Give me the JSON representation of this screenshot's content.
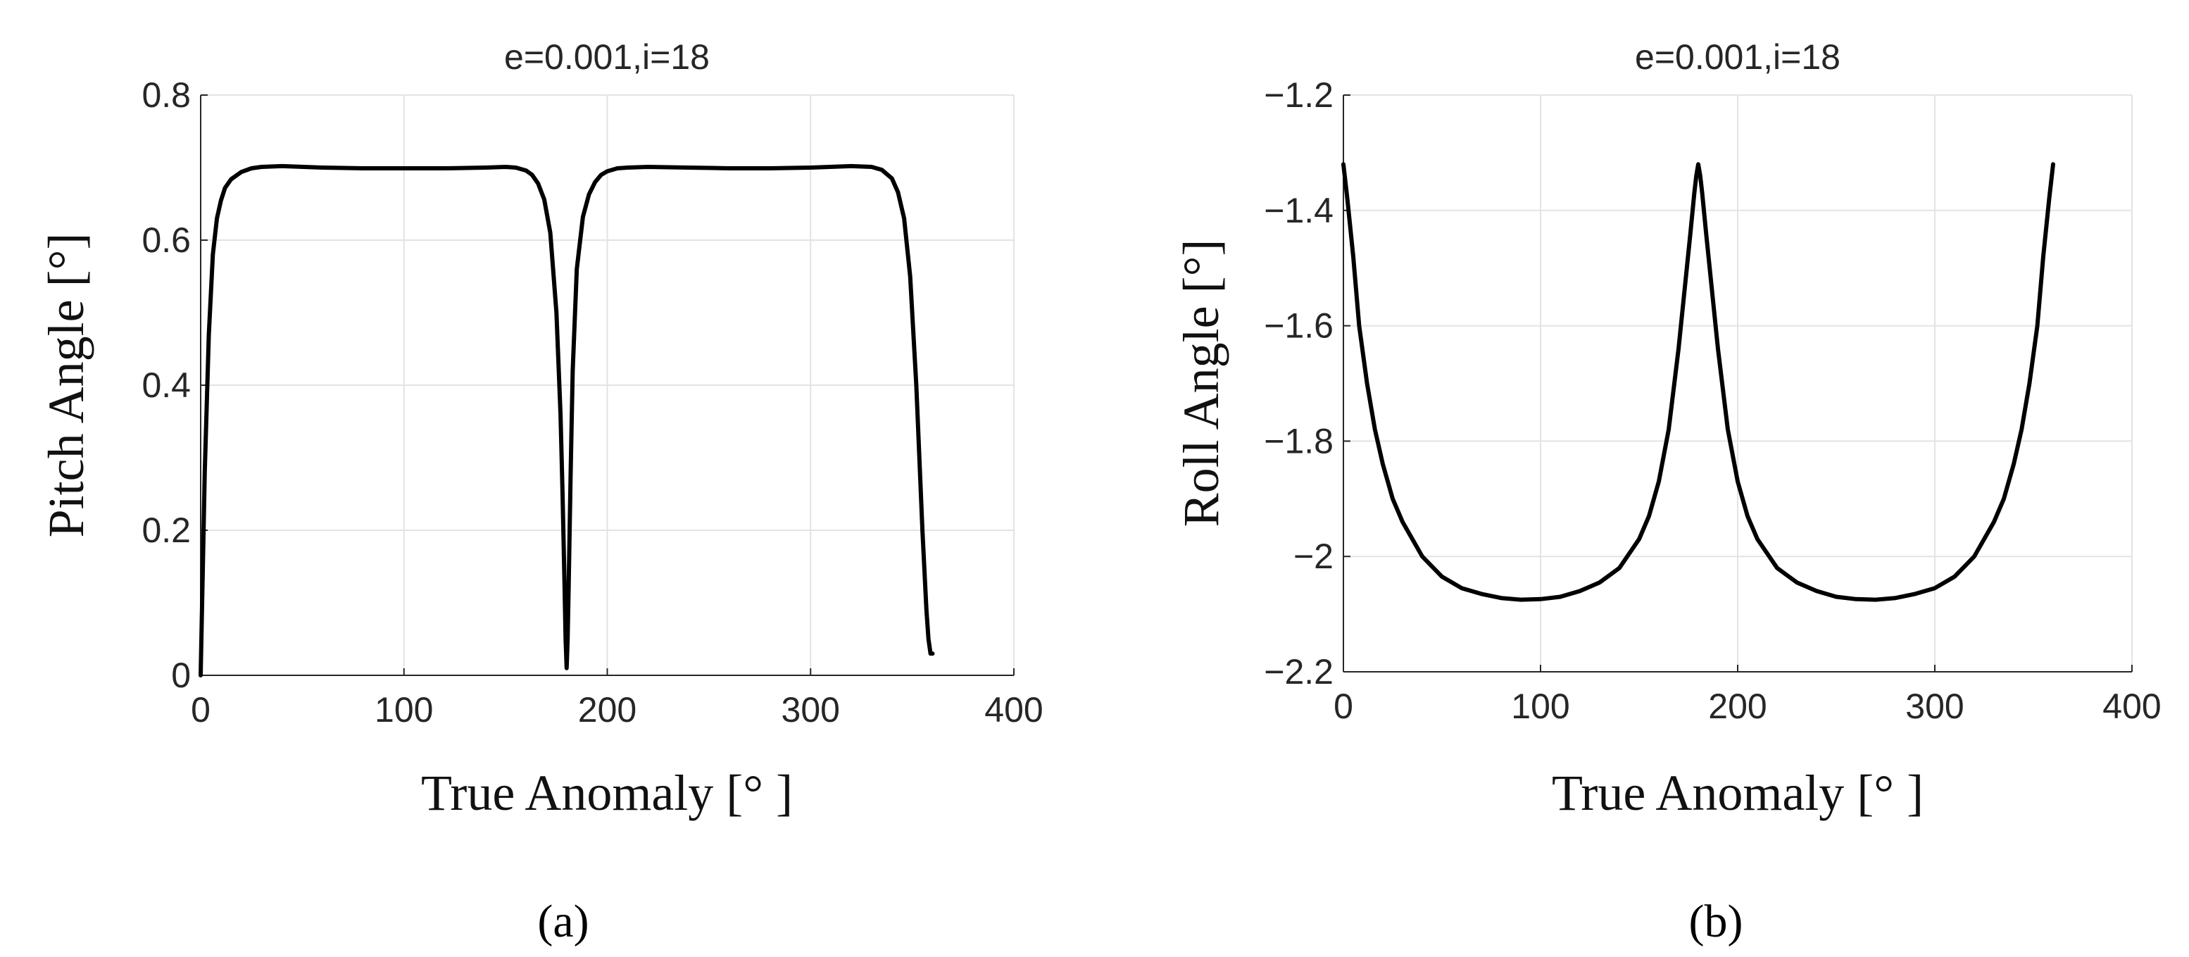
{
  "chart_data": [
    {
      "panel_label": "(a)",
      "type": "line",
      "title": "e=0.001,i=18",
      "xlabel": "True Anomaly [° ]",
      "ylabel": "Pitch Angle [°]",
      "xlim": [
        0,
        400
      ],
      "ylim": [
        0,
        0.8
      ],
      "xticks": [
        0,
        100,
        200,
        300,
        400
      ],
      "xtick_labels": [
        "0",
        "100",
        "200",
        "300",
        "400"
      ],
      "yticks": [
        0,
        0.2,
        0.4,
        0.6,
        0.8
      ],
      "ytick_labels": [
        "0",
        "0.2",
        "0.4",
        "0.6",
        "0.8"
      ],
      "grid": true,
      "line_color": "#000000",
      "series": [
        {
          "x": [
            0,
            1,
            2,
            4,
            6,
            8,
            10,
            12,
            15,
            20,
            25,
            30,
            40,
            60,
            80,
            100,
            120,
            140,
            150,
            155,
            160,
            163,
            166,
            169,
            172,
            175,
            177,
            178,
            179,
            179.5,
            180,
            180.5,
            181,
            182,
            183,
            185,
            188,
            191,
            194,
            197,
            200,
            205,
            210,
            220,
            240,
            260,
            280,
            300,
            320,
            330,
            335,
            340,
            343,
            346,
            349,
            352,
            355,
            357,
            358,
            359,
            360
          ],
          "y": [
            0,
            0.14,
            0.28,
            0.47,
            0.58,
            0.63,
            0.655,
            0.672,
            0.684,
            0.694,
            0.699,
            0.701,
            0.702,
            0.7,
            0.699,
            0.699,
            0.699,
            0.7,
            0.701,
            0.7,
            0.696,
            0.69,
            0.678,
            0.656,
            0.61,
            0.5,
            0.36,
            0.25,
            0.12,
            0.05,
            0.01,
            0.05,
            0.12,
            0.28,
            0.42,
            0.56,
            0.632,
            0.663,
            0.68,
            0.69,
            0.695,
            0.699,
            0.7,
            0.701,
            0.7,
            0.699,
            0.699,
            0.7,
            0.702,
            0.701,
            0.697,
            0.685,
            0.666,
            0.63,
            0.55,
            0.4,
            0.2,
            0.09,
            0.05,
            0.03,
            0.03
          ]
        }
      ]
    },
    {
      "panel_label": "(b)",
      "type": "line",
      "title": "e=0.001,i=18",
      "xlabel": "True Anomaly [° ]",
      "ylabel": "Roll Angle [°]",
      "xlim": [
        0,
        400
      ],
      "ylim": [
        -2.2,
        -1.2
      ],
      "xticks": [
        0,
        100,
        200,
        300,
        400
      ],
      "xtick_labels": [
        "0",
        "100",
        "200",
        "300",
        "400"
      ],
      "yticks": [
        -2.2,
        -2,
        -1.8,
        -1.6,
        -1.4,
        -1.2
      ],
      "ytick_labels": [
        "−2.2",
        "−2",
        "−1.8",
        "−1.6",
        "−1.4",
        "−1.2"
      ],
      "grid": true,
      "line_color": "#000000",
      "series": [
        {
          "x": [
            0,
            2,
            5,
            8,
            12,
            16,
            20,
            25,
            30,
            40,
            50,
            60,
            70,
            80,
            90,
            100,
            110,
            120,
            130,
            140,
            150,
            155,
            160,
            165,
            170,
            173,
            176,
            178,
            179,
            180,
            181,
            182,
            184,
            187,
            190,
            195,
            200,
            205,
            210,
            220,
            230,
            240,
            250,
            260,
            270,
            280,
            290,
            300,
            310,
            320,
            330,
            335,
            340,
            344,
            348,
            352,
            355,
            358,
            360
          ],
          "y": [
            -1.32,
            -1.38,
            -1.48,
            -1.6,
            -1.7,
            -1.78,
            -1.84,
            -1.9,
            -1.94,
            -2.0,
            -2.035,
            -2.055,
            -2.065,
            -2.072,
            -2.075,
            -2.074,
            -2.07,
            -2.06,
            -2.045,
            -2.02,
            -1.97,
            -1.93,
            -1.87,
            -1.78,
            -1.64,
            -1.54,
            -1.44,
            -1.37,
            -1.34,
            -1.32,
            -1.34,
            -1.37,
            -1.44,
            -1.54,
            -1.64,
            -1.78,
            -1.87,
            -1.93,
            -1.97,
            -2.02,
            -2.045,
            -2.06,
            -2.07,
            -2.074,
            -2.075,
            -2.072,
            -2.065,
            -2.055,
            -2.035,
            -2.0,
            -1.94,
            -1.9,
            -1.84,
            -1.78,
            -1.7,
            -1.6,
            -1.48,
            -1.38,
            -1.32
          ]
        }
      ]
    }
  ]
}
